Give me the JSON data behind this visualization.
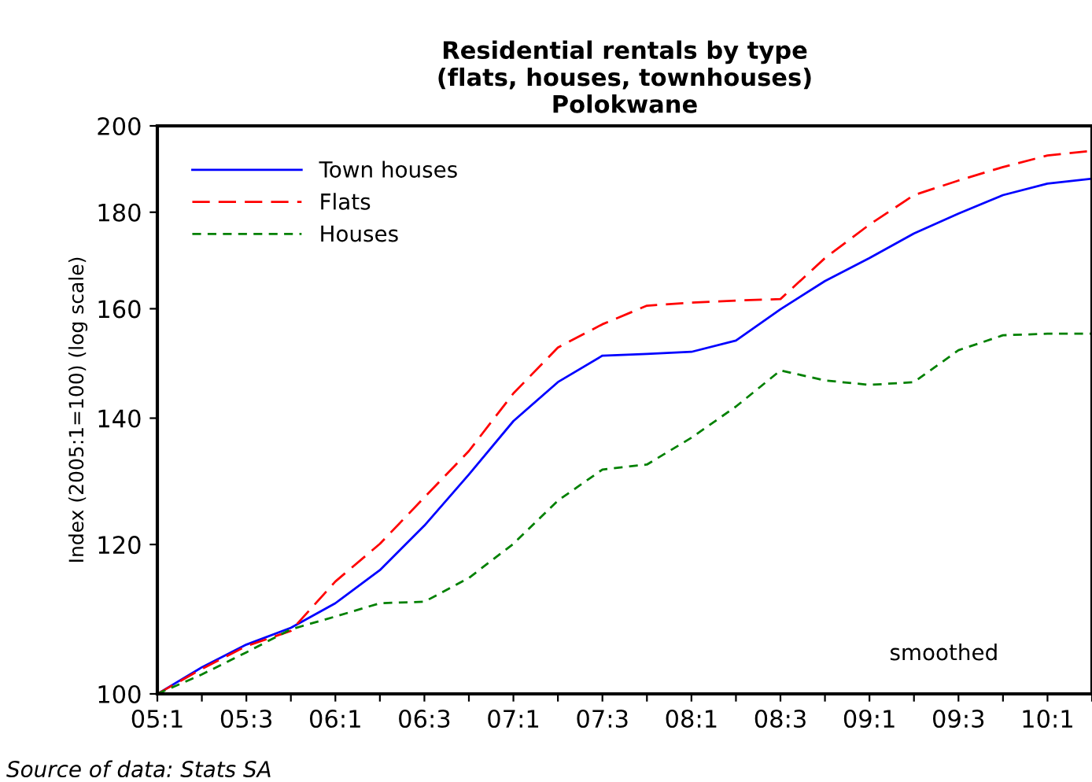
{
  "chart_data": {
    "type": "line",
    "title": "Residential rentals by type\n(flats, houses, townhouses)\nPolokwane",
    "ylabel": "Index (2005:1=100) (log scale)",
    "categories": [
      "05:1",
      null,
      "05:3",
      null,
      "06:1",
      null,
      "06:3",
      null,
      "07:1",
      null,
      "07:3",
      null,
      "08:1",
      null,
      "08:3",
      null,
      "09:1",
      null,
      "09:3",
      null,
      "10:1",
      null
    ],
    "series": [
      {
        "name": "Town houses",
        "color": "#0000ff",
        "line_style": "solid",
        "values": [
          100,
          103.3,
          106.2,
          108.4,
          111.7,
          116.3,
          122.8,
          130.7,
          139.5,
          146.3,
          151.1,
          151.4,
          151.8,
          153.9,
          159.9,
          165.5,
          170.2,
          175.4,
          179.7,
          183.8,
          186.4,
          187.5
        ]
      },
      {
        "name": "Flats",
        "color": "#ff0000",
        "line_style": "dashed",
        "values": [
          100,
          103.1,
          106.0,
          108.0,
          114.7,
          120.1,
          127.1,
          134.5,
          144.3,
          152.6,
          157.0,
          160.6,
          161.2,
          161.6,
          161.9,
          170.2,
          177.3,
          183.8,
          187.1,
          190.2,
          192.9,
          194.0
        ]
      },
      {
        "name": "Houses",
        "color": "#008000",
        "line_style": "dashed",
        "values": [
          100,
          102.4,
          105.2,
          108.2,
          109.9,
          111.7,
          111.9,
          115.2,
          120.1,
          126.6,
          131.5,
          132.3,
          136.7,
          142.0,
          148.4,
          146.6,
          145.8,
          146.3,
          152.1,
          154.9,
          155.2,
          155.2
        ]
      }
    ],
    "log": true,
    "ylim": [
      100,
      200
    ],
    "yticks": [
      100,
      120,
      140,
      160,
      180,
      200
    ],
    "grid": false,
    "legend": "top left",
    "marker": "none",
    "annotations": [
      "smoothed",
      "Source of data: Stats SA"
    ]
  }
}
